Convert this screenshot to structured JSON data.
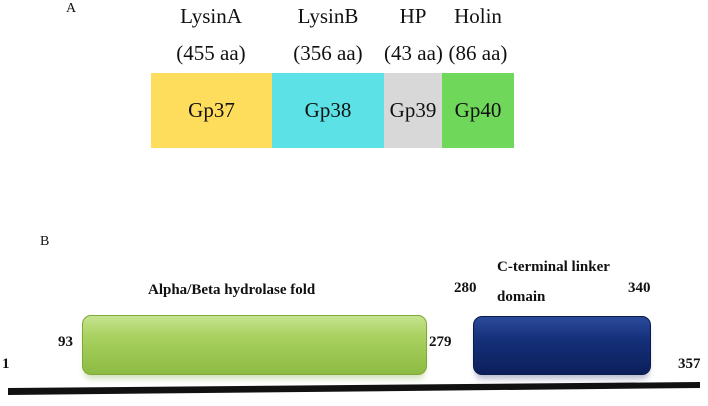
{
  "panel_a": {
    "letter": "A",
    "genes": [
      {
        "name": "LysinA",
        "length": "(455 aa)",
        "box_label": "Gp37",
        "color": "#ffdd5c"
      },
      {
        "name": "LysinB",
        "length": "(356 aa)",
        "box_label": "Gp38",
        "color": "#5ce1e6"
      },
      {
        "name": "HP",
        "length": "(43 aa)",
        "box_label": "Gp39",
        "color": "#d8d8d8"
      },
      {
        "name": "Holin",
        "length": "(86 aa)",
        "box_label": "Gp40",
        "color": "#6fd85a"
      }
    ]
  },
  "panel_b": {
    "letter": "B",
    "domain1": {
      "label": "Alpha/Beta hydrolase fold",
      "start": "93",
      "end": "279",
      "color": "#a9d160"
    },
    "domain2": {
      "label_line1": "C-terminal linker",
      "label_line2": "domain",
      "start": "280",
      "end": "340",
      "color": "#15307a"
    },
    "axis": {
      "start": "1",
      "end": "357"
    }
  }
}
